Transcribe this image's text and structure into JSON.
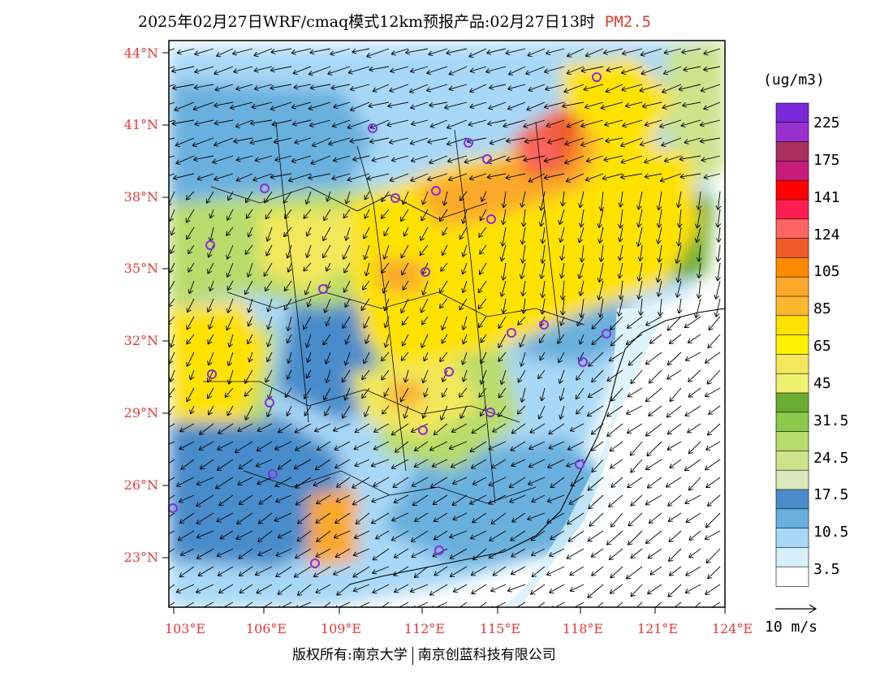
{
  "title": {
    "text": "2025年02月27日WRF/cmaq模式12km预报产品:02月27日13时",
    "variable": "PM2.5"
  },
  "axes": {
    "lat_labels": [
      "44°N",
      "41°N",
      "38°N",
      "35°N",
      "32°N",
      "29°N",
      "26°N",
      "23°N"
    ],
    "lon_labels": [
      "103°E",
      "106°E",
      "109°E",
      "112°E",
      "115°E",
      "118°E",
      "121°E",
      "124°E"
    ]
  },
  "colorbar": {
    "unit": "(ug/m3)",
    "labels": [
      "225",
      "175",
      "141",
      "124",
      "105",
      "85",
      "65",
      "45",
      "31.5",
      "24.5",
      "17.5",
      "10.5",
      "3.5"
    ],
    "colors": [
      "#7a2ad8",
      "#9b30d0",
      "#a8305e",
      "#c81c7c",
      "#ff0000",
      "#ff1e50",
      "#ff6464",
      "#ee5a28",
      "#ff8a00",
      "#fba92a",
      "#fdb72f",
      "#ffe200",
      "#fff200",
      "#f3e85c",
      "#f0f070",
      "#6aac32",
      "#8cc84b",
      "#b8dc6c",
      "#cce38c",
      "#dce8bc",
      "#4a8ccb",
      "#6ab0de",
      "#a8d8f8",
      "#d6f0fb",
      "#ffffff"
    ]
  },
  "wind_legend": {
    "label": "10 m/s"
  },
  "footer": {
    "left": "版权所有:南京大学",
    "right": "南京创蓝科技有限公司"
  },
  "map_colors": {
    "very_low": "#ffffff",
    "low": "#d6f0fb",
    "light_blue": "#a8d8f8",
    "blue": "#4a8ccb",
    "pale_green": "#dce8bc",
    "green": "#b8dc6c",
    "dark_green": "#6aac32",
    "yellow": "#ffe200",
    "orange": "#fba92a",
    "red": "#ee5a28"
  }
}
